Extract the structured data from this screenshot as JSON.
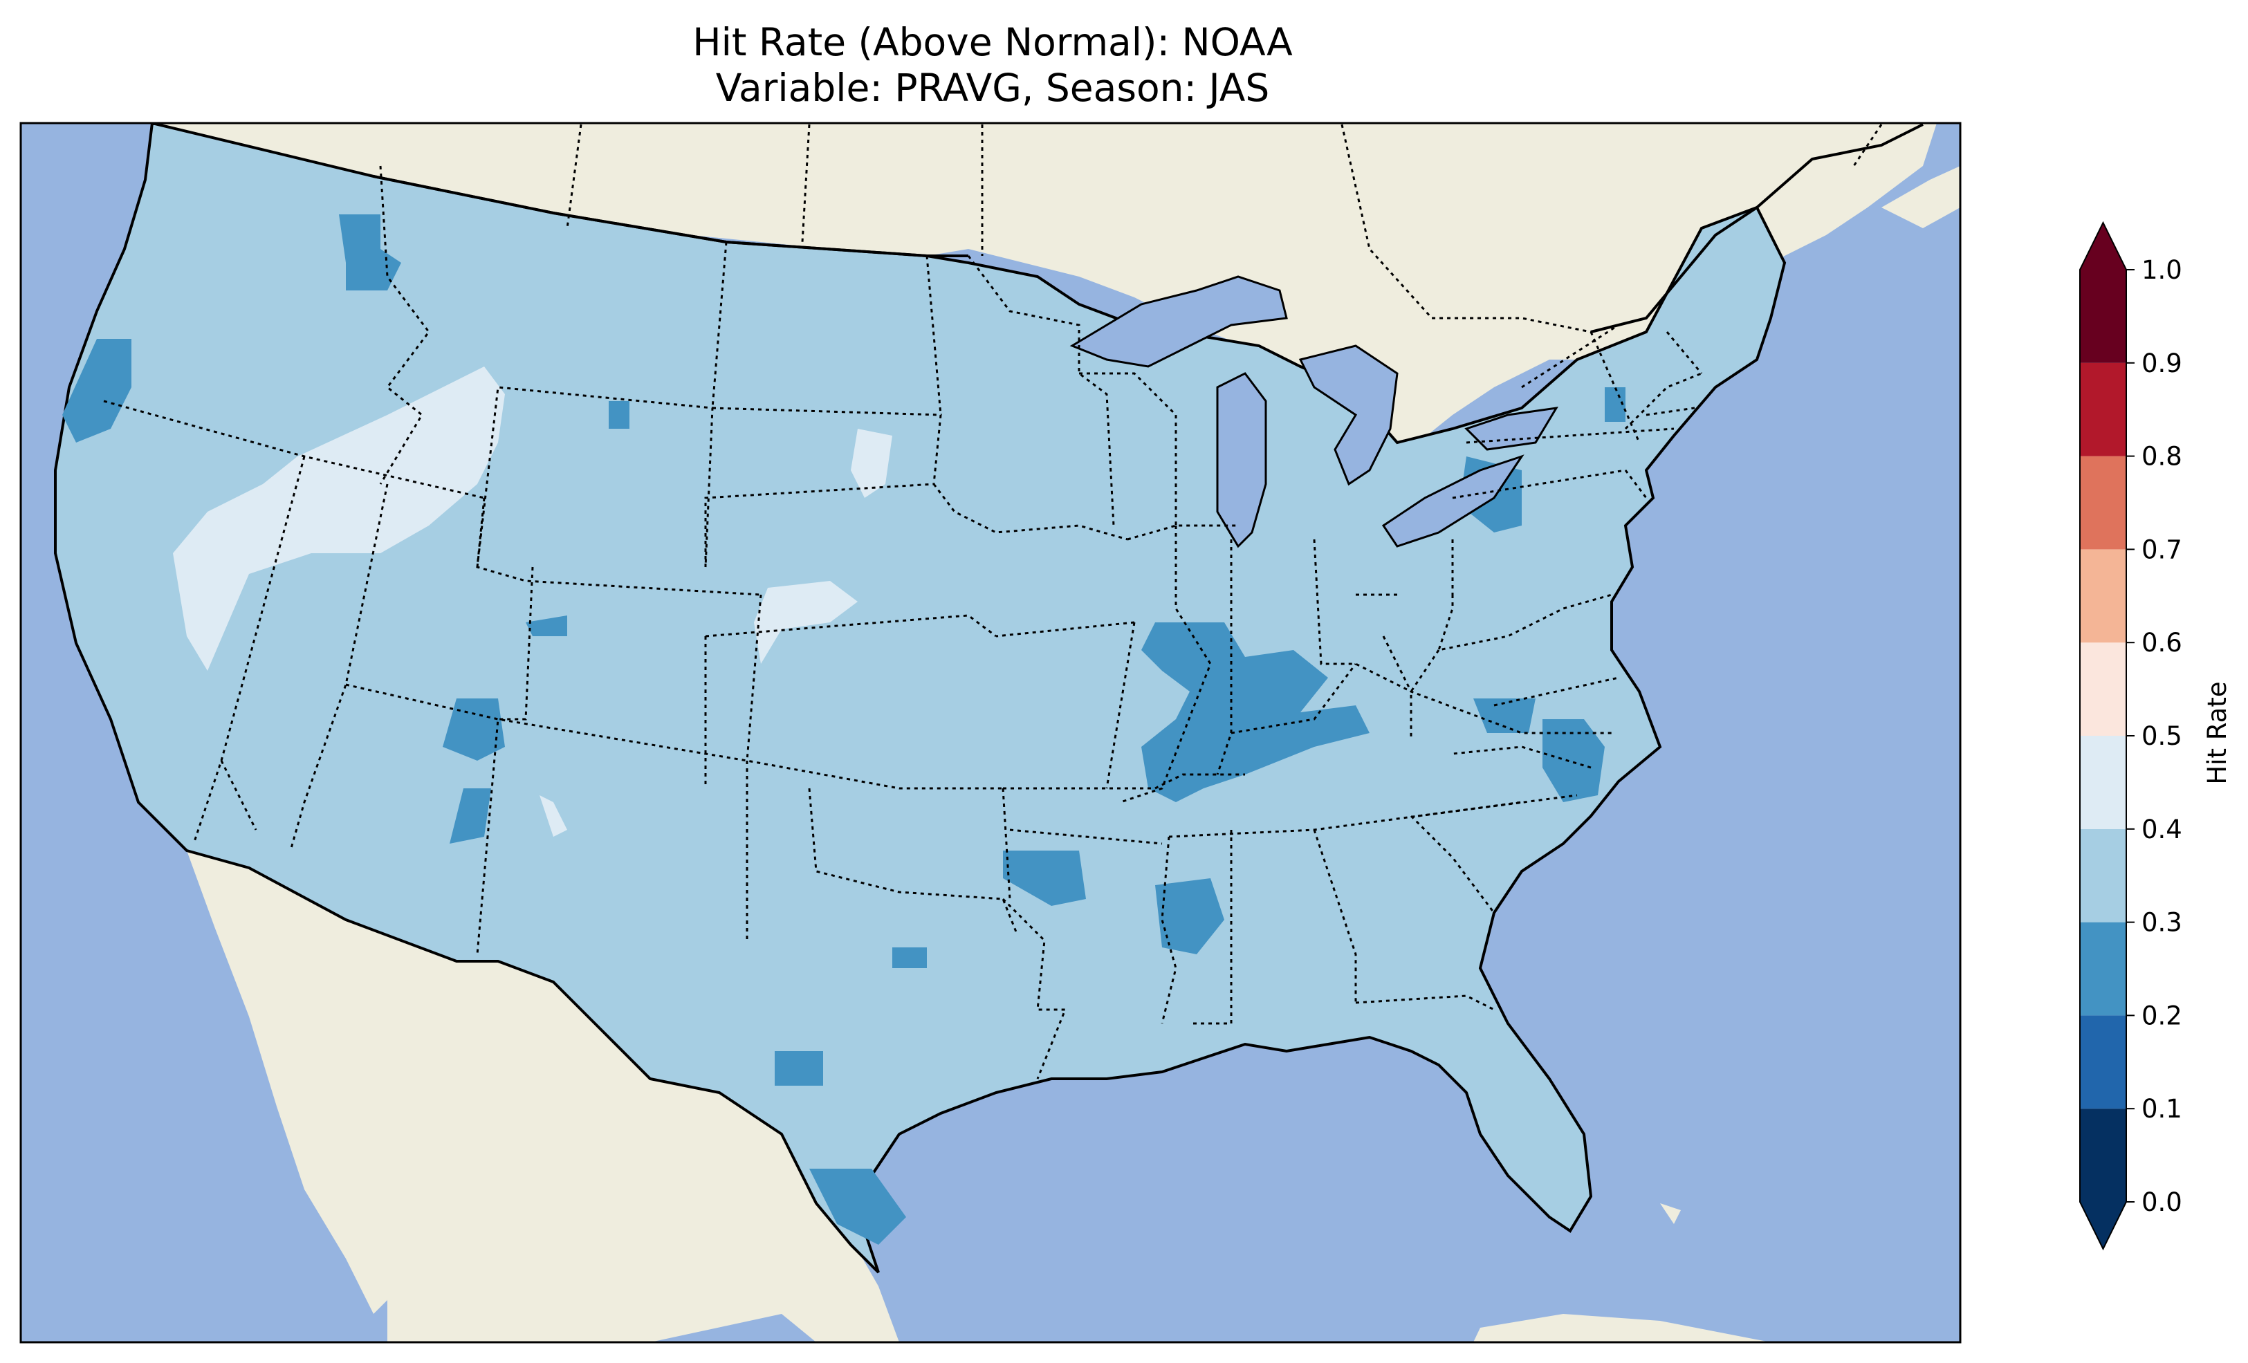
{
  "title": {
    "line1": "Hit Rate (Above Normal): NOAA",
    "line2": "Variable: PRAVG, Season: JAS"
  },
  "colors": {
    "ocean": "#96b4e0",
    "land": "#efedde",
    "lake": "#96b4e0",
    "bin_0_0_1": "#053061",
    "bin_0_1_0_2": "#2166ac",
    "bin_0_2_0_3": "#4393c3",
    "bin_0_3_0_4": "#a6cee3",
    "bin_0_4_0_5": "#deebf4",
    "bin_0_5_0_6": "#fbe6dd",
    "bin_0_6_0_7": "#f4b596",
    "bin_0_7_0_8": "#df735c",
    "bin_0_8_0_9": "#b2182b",
    "bin_0_9_1_0": "#67001f"
  },
  "map": {
    "region": "Contiguous United States",
    "dominant_hit_rate_bin": "0.3-0.4",
    "features": [
      "coastlines",
      "state borders (dotted)",
      "country borders",
      "lakes"
    ]
  },
  "colorbar": {
    "label": "Hit Rate",
    "ticks": [
      "0.0",
      "0.1",
      "0.2",
      "0.3",
      "0.4",
      "0.5",
      "0.6",
      "0.7",
      "0.8",
      "0.9",
      "1.0"
    ],
    "bins": [
      {
        "range": [
          0.0,
          0.1
        ],
        "color": "#053061"
      },
      {
        "range": [
          0.1,
          0.2
        ],
        "color": "#2166ac"
      },
      {
        "range": [
          0.2,
          0.3
        ],
        "color": "#4393c3"
      },
      {
        "range": [
          0.3,
          0.4
        ],
        "color": "#a6cee3"
      },
      {
        "range": [
          0.4,
          0.5
        ],
        "color": "#deebf4"
      },
      {
        "range": [
          0.5,
          0.6
        ],
        "color": "#fbe6dd"
      },
      {
        "range": [
          0.6,
          0.7
        ],
        "color": "#f4b596"
      },
      {
        "range": [
          0.7,
          0.8
        ],
        "color": "#df735c"
      },
      {
        "range": [
          0.8,
          0.9
        ],
        "color": "#b2182b"
      },
      {
        "range": [
          0.9,
          1.0
        ],
        "color": "#67001f"
      }
    ],
    "extend": "both"
  }
}
